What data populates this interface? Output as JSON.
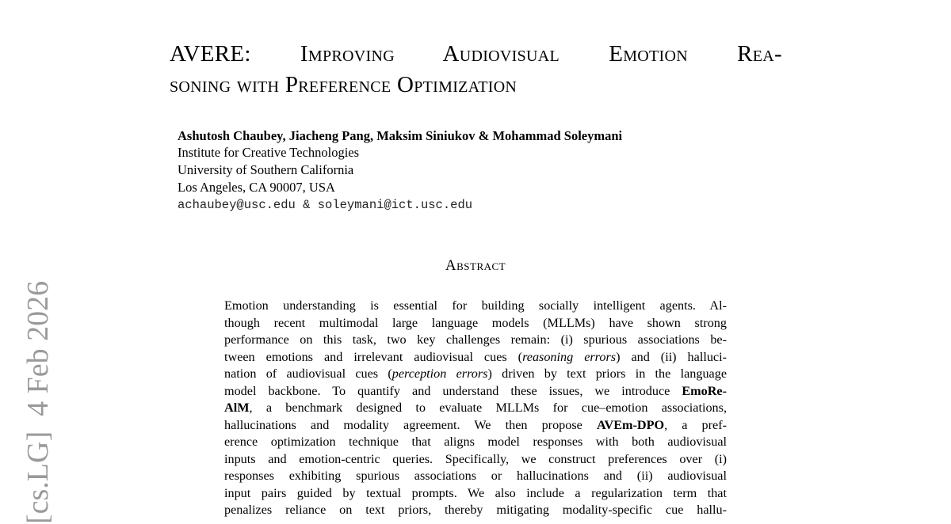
{
  "title": {
    "lines": [
      "AVERE: Improving Audiovisual Emotion Rea-",
      "soning with Preference Optimization"
    ]
  },
  "authors": "Ashutosh Chaubey, Jiacheng Pang, Maksim Siniukov & Mohammad Soleymani",
  "affiliation": [
    "Institute for Creative Technologies",
    "University of Southern California",
    "Los Angeles, CA 90007, USA"
  ],
  "email": "achaubey@usc.edu & soleymani@ict.usc.edu",
  "sidebar": "[cs.LG]  4 Feb 2026",
  "abstract": {
    "heading": "Abstract",
    "lines": [
      [
        "Emotion understanding is essential for building socially intelligent agents. Al-"
      ],
      [
        "though recent multimodal large language models (MLLMs) have shown strong"
      ],
      [
        "performance on this task, two key challenges remain: (i) spurious associations be-"
      ],
      [
        "tween emotions and irrelevant audiovisual cues (",
        "reasoning errors",
        ") and (ii) halluci-"
      ],
      [
        "nation of audiovisual cues (",
        "perception errors",
        ") driven by text priors in the language"
      ],
      [
        "model backbone. To quantify and understand these issues, we introduce ",
        "EmoRe-"
      ],
      [
        "AlM",
        ", a benchmark designed to evaluate MLLMs for cue–emotion associations,"
      ],
      [
        "hallucinations and modality agreement. We then propose ",
        "AVEm-DPO",
        ", a pref-"
      ],
      [
        "erence optimization technique that aligns model responses with both audiovisual"
      ],
      [
        "inputs and emotion-centric queries. Specifically, we construct preferences over (i)"
      ],
      [
        "responses exhibiting spurious associations or hallucinations and (ii) audiovisual"
      ],
      [
        "input pairs guided by textual prompts. We also include a regularization term that"
      ],
      [
        "penalizes reliance on text priors, thereby mitigating modality-specific cue hallu-"
      ]
    ]
  }
}
